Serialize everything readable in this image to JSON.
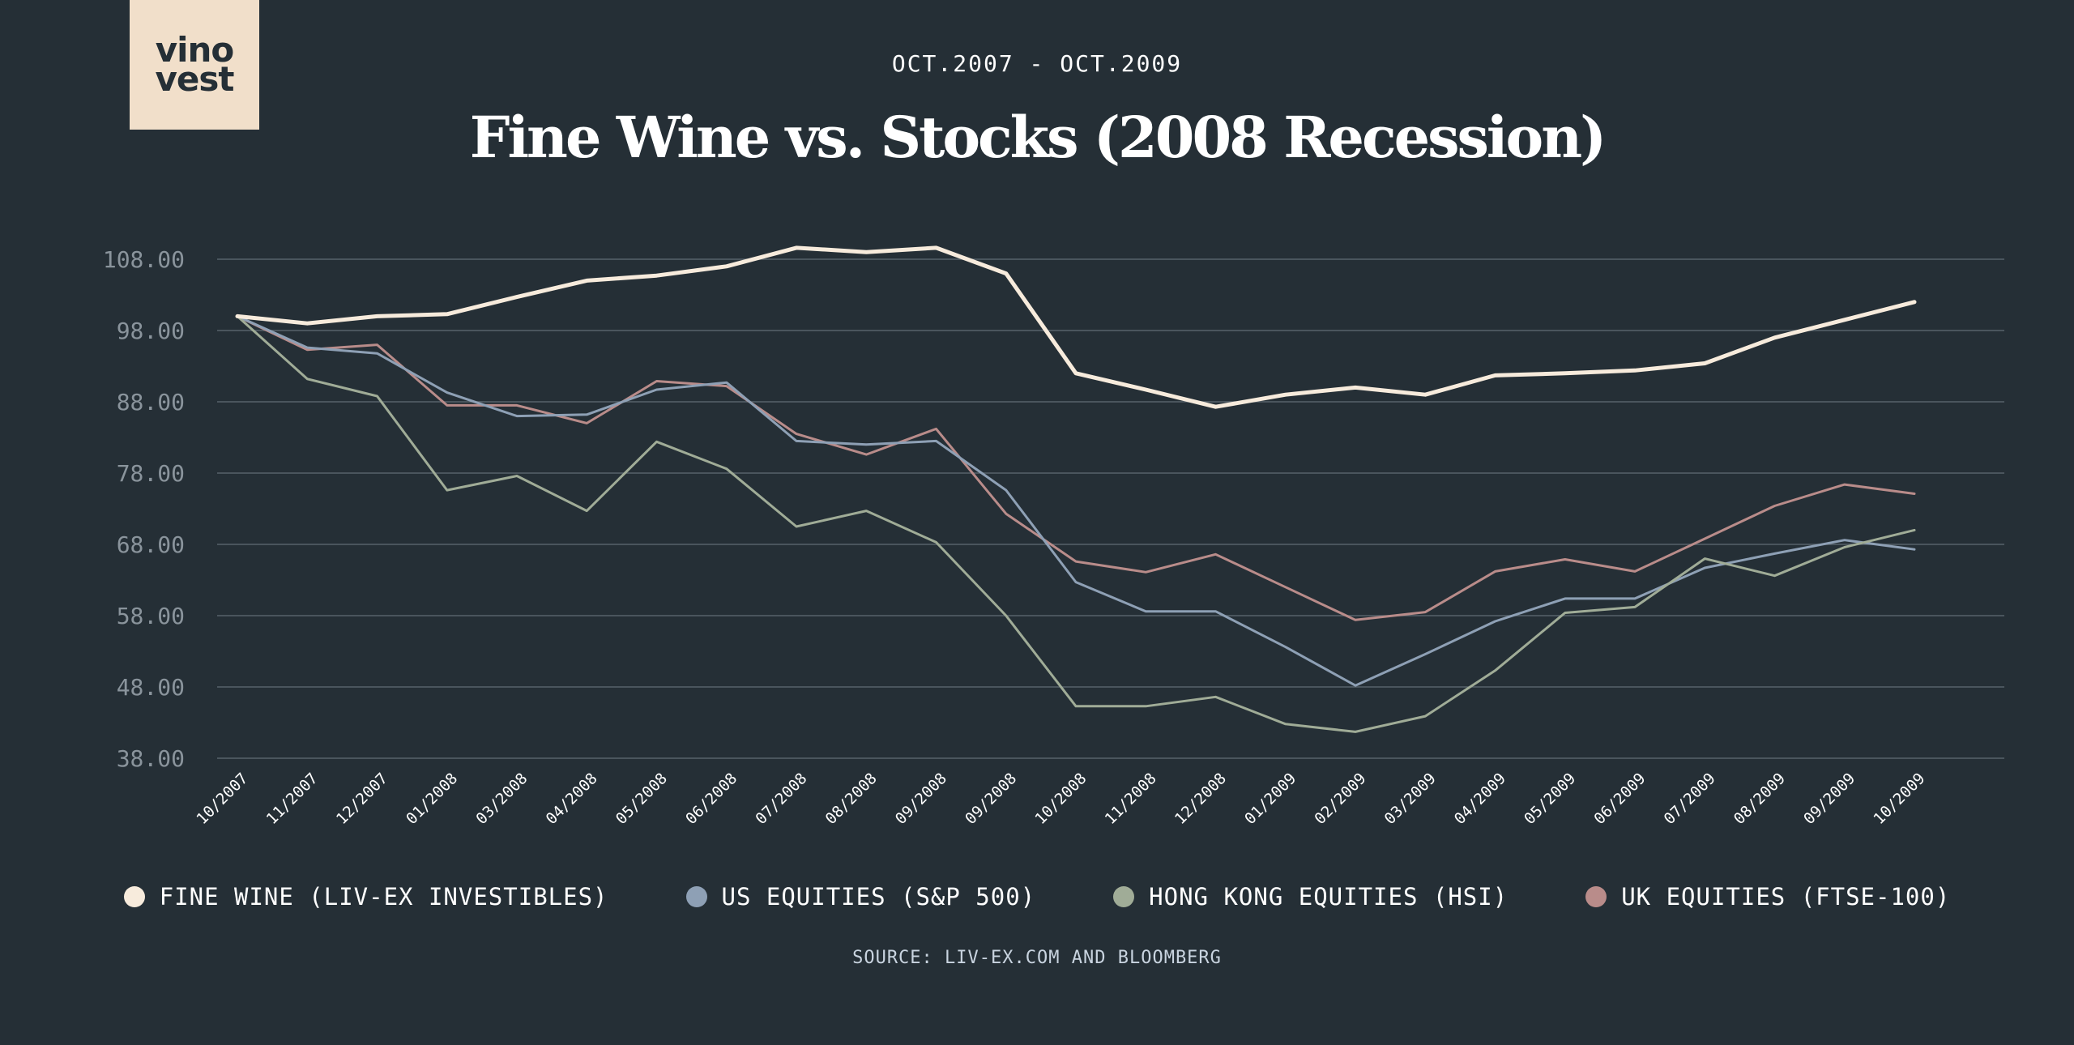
{
  "brand": {
    "logo_line1": "vino",
    "logo_line2": "vest"
  },
  "header": {
    "subtitle": "OCT.2007 - OCT.2009",
    "title": "Fine Wine vs. Stocks (2008 Recession)"
  },
  "source": "SOURCE: LIV-EX.COM AND BLOOMBERG",
  "chart_data": {
    "type": "line",
    "title": "Fine Wine vs. Stocks (2008 Recession)",
    "subtitle": "OCT.2007 - OCT.2009",
    "xlabel": "",
    "ylabel": "",
    "ylim": [
      38,
      108
    ],
    "yticks": [
      "108.00",
      "98.00",
      "88.00",
      "78.00",
      "68.00",
      "58.00",
      "48.00",
      "38.00"
    ],
    "grid": true,
    "legend_position": "bottom",
    "categories": [
      "10/2007",
      "11/2007",
      "12/2007",
      "01/2008",
      "03/2008",
      "04/2008",
      "05/2008",
      "06/2008",
      "07/2008",
      "08/2008",
      "09/2008",
      "09/2008",
      "10/2008",
      "11/2008",
      "12/2008",
      "01/2009",
      "02/2009",
      "03/2009",
      "04/2009",
      "05/2009",
      "06/2009",
      "07/2009",
      "08/2009",
      "09/2009",
      "10/2009"
    ],
    "series": [
      {
        "name": "FINE WINE (LIV-EX INVESTIBLES)",
        "color": "#f7ebdc",
        "width": 5,
        "values": [
          100,
          99,
          100,
          100.3,
          102.7,
          105,
          105.7,
          107,
          109.6,
          109,
          109.6,
          106,
          92,
          89.7,
          87.3,
          89,
          90,
          89,
          91.7,
          92,
          92.4,
          93.4,
          97,
          99.5,
          102
        ]
      },
      {
        "name": "US EQUITIES (S&P 500)",
        "color": "#8ea0b5",
        "width": 3,
        "values": [
          100,
          95.6,
          94.8,
          89.3,
          86,
          86.2,
          89.7,
          90.7,
          82.5,
          82,
          82.5,
          75.6,
          62.7,
          58.6,
          58.6,
          53.6,
          48.2,
          52.6,
          57.2,
          60.4,
          60.4,
          64.7,
          66.7,
          68.6,
          67.3
        ]
      },
      {
        "name": "HONG KONG EQUITIES (HSI)",
        "color": "#a0ac97",
        "width": 3,
        "values": [
          100,
          91.2,
          88.8,
          75.6,
          77.6,
          72.7,
          82.4,
          78.6,
          70.5,
          72.7,
          68.3,
          58,
          45.3,
          45.3,
          46.6,
          42.8,
          41.7,
          43.9,
          50.3,
          58.4,
          59.2,
          66,
          63.6,
          67.6,
          70
        ]
      },
      {
        "name": "UK EQUITIES (FTSE-100)",
        "color": "#b98c8a",
        "width": 3,
        "values": [
          100,
          95.3,
          96,
          87.5,
          87.5,
          85,
          90.9,
          90.2,
          83.5,
          80.6,
          84.2,
          72.3,
          65.6,
          64.1,
          66.6,
          62,
          57.4,
          58.5,
          64.2,
          65.9,
          64.2,
          68.8,
          73.4,
          76.4,
          75.1
        ]
      }
    ]
  }
}
